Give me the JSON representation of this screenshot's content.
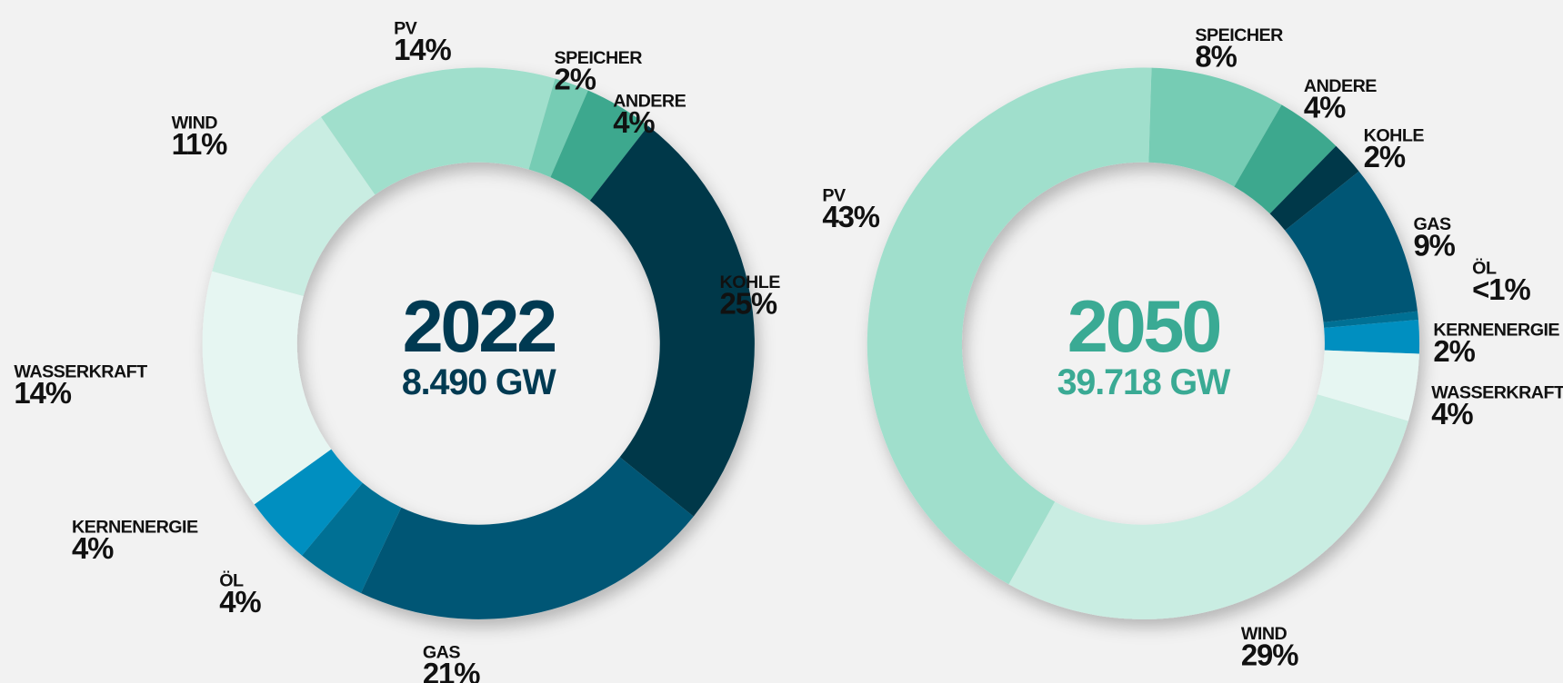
{
  "chart_data": [
    {
      "type": "donut",
      "title": "2022",
      "subtitle": "8.490 GW",
      "categories": [
        "PV",
        "SPEICHER",
        "ANDERE",
        "KOHLE",
        "GAS",
        "ÖL",
        "KERNENERGIE",
        "WASSERKRAFT",
        "WIND"
      ],
      "values": [
        14,
        2,
        4,
        25,
        21,
        4,
        4,
        14,
        11
      ],
      "value_labels": [
        "14%",
        "2%",
        "4%",
        "25%",
        "21%",
        "4%",
        "4%",
        "14%",
        "11%"
      ],
      "colors": [
        "#a0dfcc",
        "#76ccb4",
        "#3ea88e",
        "#00384a",
        "#005674",
        "#006f94",
        "#008fc0",
        "#e6f6f2",
        "#c9ede2"
      ],
      "title_color": "#003a52"
    },
    {
      "type": "donut",
      "title": "2050",
      "subtitle": "39.718 GW",
      "categories": [
        "SPEICHER",
        "ANDERE",
        "KOHLE",
        "GAS",
        "ÖL",
        "KERNENERGIE",
        "WASSERKRAFT",
        "WIND",
        "PV"
      ],
      "values": [
        8,
        4,
        2,
        9,
        0.5,
        2,
        4,
        29,
        43
      ],
      "value_labels": [
        "8%",
        "4%",
        "2%",
        "9%",
        "<1%",
        "2%",
        "4%",
        "29%",
        "43%"
      ],
      "colors": [
        "#76ccb4",
        "#3ea88e",
        "#00384a",
        "#005674",
        "#006f94",
        "#008fc0",
        "#e6f6f2",
        "#c9ede2",
        "#a0dfcc"
      ],
      "title_color": "#3aaa94"
    }
  ]
}
